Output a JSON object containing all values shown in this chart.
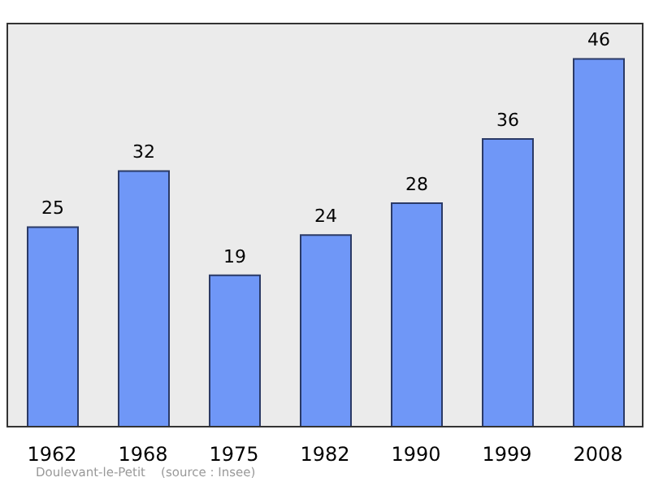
{
  "chart_data": {
    "type": "bar",
    "categories": [
      "1962",
      "1968",
      "1975",
      "1982",
      "1990",
      "1999",
      "2008"
    ],
    "values": [
      25,
      32,
      19,
      24,
      28,
      36,
      46
    ],
    "color": "#6f97f7",
    "ylim": [
      0,
      50.5
    ],
    "tick_labels": "x",
    "data_labels": true,
    "annotations": [
      "Doulevant-le-Petit    (source : Insee)"
    ]
  }
}
